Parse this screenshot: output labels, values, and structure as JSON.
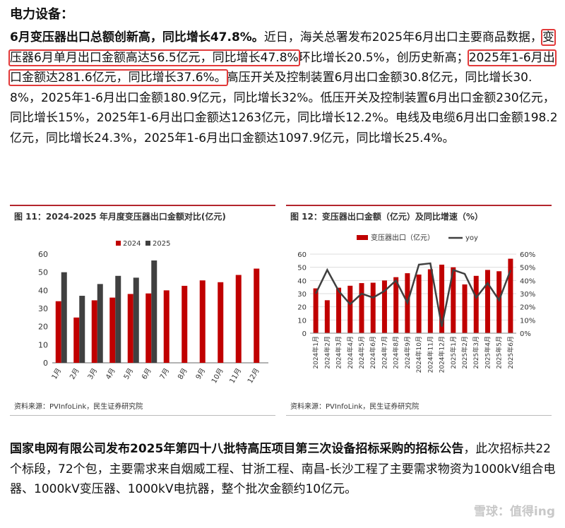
{
  "section_title": "电力设备：",
  "para1": {
    "headline": "6月变压器出口总额创新高，同比增长47.8%。",
    "t1": "近日，海关总署发布2025年6月出口主要商品数据，",
    "hl1": "变压器6月单月出口金额高达56.5亿元，同比增长47.8%",
    "t2": "环比增长20.5%，创历史新高；",
    "hl2": "2025年1-6月出口金额达281.6亿元，同比增长37.6%。",
    "t3": "高压开关及控制装置6月出口金额30.8亿元，同比增长30.8%，2025年1-6月出口金额180.9亿元，同比增长32%。低压开关及控制装置6月出口金额230亿元，同比增长15%，2025年1-6月出口金额达1263亿元，同比增长12.2%。电线及电缆6月出口金额198.2亿元，同比增长24.3%，2025年1-6月出口金额达1097.9亿元，同比增长25.4%。"
  },
  "para2": {
    "headline": "国家电网有限公司发布2025年第四十八批特高压项目第三次设备招标采购的招标公告",
    "text": "，此次招标共22个标段，72个包，主要需求来自烟威工程、甘浙工程、南昌-长沙工程了主要需求物资为1000kV组合电器、1000kV变压器、1000kV电抗器，整个批次金额约10亿元。"
  },
  "watermark": "雪球：值得ing",
  "chart_data": [
    {
      "type": "bar",
      "title": "图 11：2024-2025 年月度变压器出口金额对比(亿元)",
      "source": "资料来源：PVInfoLink，民生证券研究院",
      "categories": [
        "1月",
        "2月",
        "3月",
        "4月",
        "5月",
        "6月",
        "7月",
        "8月",
        "9月",
        "10月",
        "11月",
        "12月"
      ],
      "series": [
        {
          "name": "2024",
          "color": "#c00000",
          "values": [
            34,
            25,
            34.5,
            36,
            38,
            38.3,
            40,
            42.5,
            45.5,
            44.5,
            48.5,
            52
          ]
        },
        {
          "name": "2025",
          "color": "#404040",
          "values": [
            50,
            37,
            43.5,
            48,
            47,
            56.5,
            null,
            null,
            null,
            null,
            null,
            null
          ]
        }
      ],
      "yticks": [
        0,
        10,
        20,
        30,
        40,
        50,
        60
      ],
      "ylim": [
        0,
        60
      ],
      "legend": "top"
    },
    {
      "type": "bar",
      "title": "图 12：变压器出口金额（亿元）及同比增速（%）",
      "source": "资料来源：PVInfoLink，民生证券研究院",
      "categories": [
        "2024年1月",
        "2024年2月",
        "2024年3月",
        "2024年4月",
        "2024年5月",
        "2024年6月",
        "2024年7月",
        "2024年8月",
        "2024年9月",
        "2024年10月",
        "2024年11月",
        "2024年12月",
        "2025年1月",
        "2025年2月",
        "2025年3月",
        "2025年4月",
        "2025年5月",
        "2025年6月"
      ],
      "series": [
        {
          "name": "变压器出口（亿元）",
          "color": "#c00000",
          "values": [
            34,
            25,
            34.5,
            36,
            38,
            38.3,
            40,
            42.5,
            45.5,
            44.5,
            48.5,
            52,
            50,
            37,
            43.5,
            48,
            47,
            56.5
          ]
        },
        {
          "name": "yoy",
          "color": "#404040",
          "axis": "right",
          "values": [
            30,
            48,
            32,
            22,
            30,
            27,
            32,
            40,
            23,
            52,
            53,
            5,
            48,
            45,
            27,
            38,
            25,
            47.8
          ]
        }
      ],
      "yticks_left": [
        0,
        10,
        20,
        30,
        40,
        50,
        60
      ],
      "yticks_right": [
        "0%",
        "10%",
        "20%",
        "30%",
        "40%",
        "50%",
        "60%"
      ],
      "ylim_left": [
        0,
        60
      ],
      "ylim_right": [
        0,
        60
      ],
      "legend": "top"
    }
  ]
}
